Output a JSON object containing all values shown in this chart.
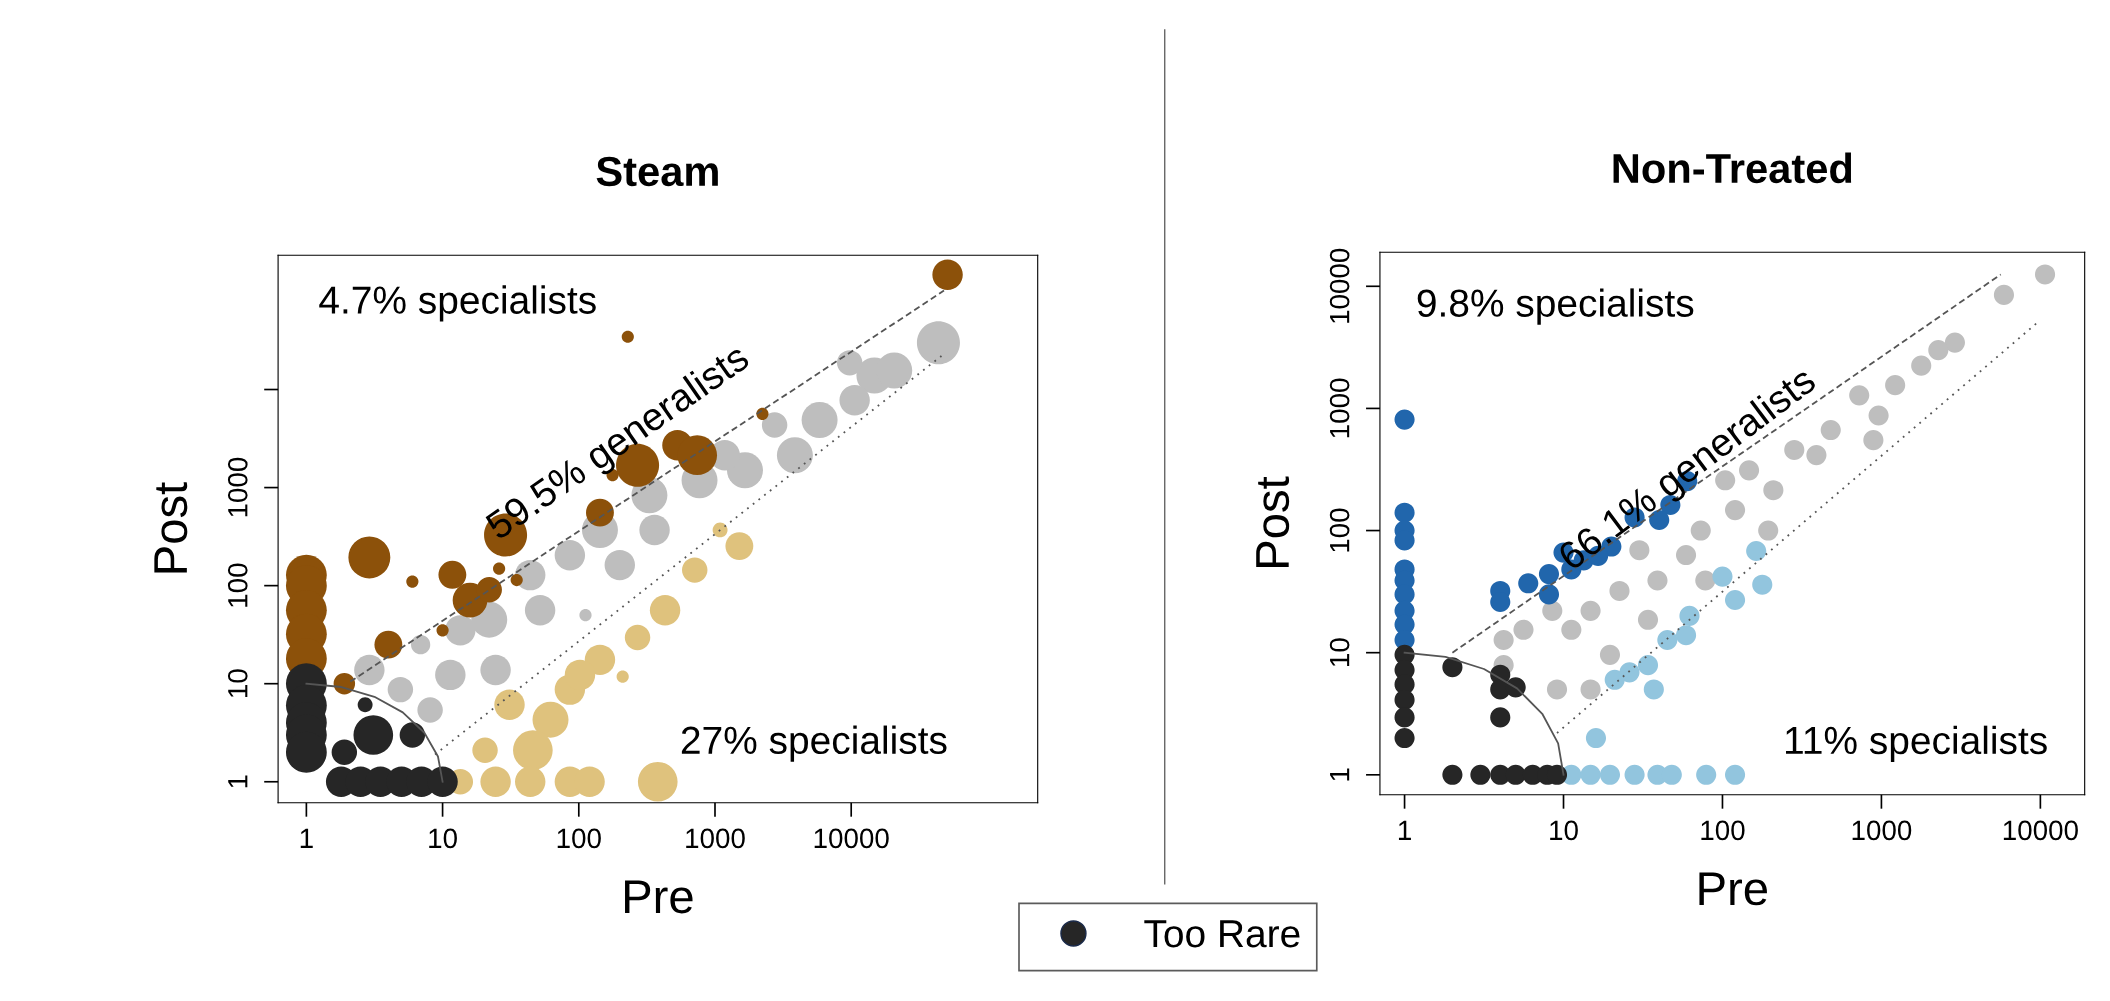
{
  "chart_data": [
    {
      "type": "bubble",
      "title": "Steam",
      "xlabel": "Pre",
      "ylabel": "Post",
      "log": "xy",
      "grid": false,
      "marker": "circle",
      "legend": "bottom",
      "xlim": [
        0.62,
        234000
      ],
      "ylim": [
        0.61,
        234000
      ],
      "xticks": [
        1,
        10,
        100,
        1000,
        10000
      ],
      "yticks": [
        1,
        10,
        100,
        1000,
        {
          "value": 10000,
          "label": null
        }
      ],
      "annotations": [
        "4.7% specialists",
        "59.5% generalists",
        "27% specialists"
      ],
      "series": [
        {
          "color": "#bebebe",
          "x": [
            43700,
            14800,
            9750,
            10600,
            5860,
            2740,
            3860,
            1660,
            1180,
            770,
            330,
            360,
            143,
            200,
            86,
            44,
            52,
            112,
            22,
            13.5,
            24.5,
            11.4,
            6.9,
            2.9,
            8.1,
            4.9,
            20700
          ],
          "values": [
            30000,
            13900,
            18700,
            7770,
            4880,
            4350,
            2140,
            1500,
            2140,
            1190,
            835,
            370,
            370,
            162,
            204,
            128,
            56,
            50,
            45,
            35,
            13.8,
            12.3,
            25,
            13.8,
            5.4,
            8.7,
            15600
          ],
          "sizes": [
            1,
            0.7,
            0.35,
            0.5,
            0.7,
            0.35,
            0.7,
            0.7,
            0.5,
            0.7,
            0.7,
            0.5,
            0.7,
            0.5,
            0.5,
            0.5,
            0.5,
            0.08,
            0.7,
            0.5,
            0.5,
            0.5,
            0.2,
            0.5,
            0.35,
            0.35,
            0.7
          ]
        },
        {
          "color": "#dfc27d",
          "x": [
            1510,
            1090,
            710,
            430,
            270,
            210,
            143,
            86,
            62,
            31,
            46,
            20.5,
            380,
            13.5,
            24.5,
            44,
            86,
            120,
            102
          ],
          "values": [
            253,
            370,
            144,
            56,
            29.6,
            11.8,
            17.5,
            8.7,
            4.3,
            6.1,
            2.1,
            2.1,
            1,
            1,
            1,
            1,
            1,
            1,
            12.3
          ],
          "sizes": [
            0.42,
            0.12,
            0.35,
            0.5,
            0.35,
            0.08,
            0.5,
            0.5,
            0.7,
            0.5,
            0.85,
            0.35,
            0.85,
            0.35,
            0.5,
            0.5,
            0.5,
            0.5,
            0.5
          ]
        },
        {
          "color": "#8c510a",
          "x": [
            51000,
            229,
            2230,
            270,
            530,
            740,
            177,
            143,
            29,
            2.9,
            6,
            11.8,
            26,
            35,
            15.9,
            22,
            10,
            4,
            1.9,
            1,
            1,
            1,
            1,
            1
          ],
          "values": [
            148000,
            34500,
            5650,
            1690,
            2700,
            2140,
            1340,
            555,
            328,
            194,
            110,
            129,
            149,
            114,
            71,
            91,
            35,
            25,
            10,
            128,
            100,
            56,
            32,
            18
          ],
          "sizes": [
            0.5,
            0.08,
            0.08,
            1,
            0.5,
            0.85,
            0.08,
            0.42,
            1,
            0.95,
            0.08,
            0.42,
            0.08,
            0.08,
            0.65,
            0.35,
            0.08,
            0.42,
            0.25,
            0.9,
            0.9,
            0.9,
            0.9,
            0.9
          ]
        },
        {
          "name": "Too Rare",
          "color": "#262626",
          "x": [
            1,
            1,
            1,
            1,
            1,
            3.1,
            6,
            2.7,
            1.9,
            1.8,
            2.5,
            3.5,
            5,
            7,
            10
          ],
          "values": [
            10,
            6,
            4,
            3,
            2,
            3,
            3,
            6.1,
            2,
            1,
            1,
            1,
            1,
            1,
            1
          ],
          "sizes": [
            0.9,
            0.9,
            0.9,
            0.9,
            0.9,
            0.85,
            0.35,
            0.12,
            0.35,
            0.5,
            0.5,
            0.5,
            0.5,
            0.5,
            0.5
          ]
        },
        {
          "type": "line",
          "color": "#555555",
          "line_style": "dashed",
          "marker": "none",
          "x": [
            2.1,
            48000
          ],
          "values": [
            10.5,
            102000
          ]
        },
        {
          "type": "line",
          "color": "#555555",
          "line_style": "dotted",
          "marker": "none",
          "x": [
            8.8,
            46000
          ],
          "values": [
            1.9,
            22000
          ]
        },
        {
          "type": "line",
          "color": "#555555",
          "line_style": "solid",
          "marker": "none",
          "x": [
            1,
            1.81,
            3.16,
            5.1,
            7.35,
            9.25,
            10
          ],
          "values": [
            10,
            9.25,
            7.35,
            5.1,
            3.16,
            1.81,
            1
          ]
        }
      ]
    },
    {
      "type": "scatter",
      "title": "Non-Treated",
      "xlabel": "Pre",
      "ylabel": "Post",
      "log": "xy",
      "grid": false,
      "marker": "circle",
      "xlim": [
        0.7,
        19000
      ],
      "ylim": [
        0.686,
        19000
      ],
      "xticks": [
        1,
        10,
        100,
        1000,
        10000
      ],
      "yticks": [
        1,
        10,
        100,
        1000,
        10000
      ],
      "annotations": [
        "9.8% specialists",
        "66.1% generalists",
        "11% specialists"
      ],
      "series": [
        {
          "color": "#bebebe",
          "x": [
            10700,
            5900,
            2900,
            2280,
            1780,
            1220,
            960,
            725,
            890,
            480,
            390,
            283,
            209,
            147,
            104,
            194,
            120,
            73,
            59,
            78,
            39,
            30,
            22.5,
            14.8,
            11.2,
            8.5,
            5.6,
            4.2,
            4.2,
            9.1,
            14.8,
            19.6,
            34
          ],
          "values": [
            12500,
            8500,
            3460,
            3000,
            2240,
            1550,
            875,
            1280,
            550,
            665,
            415,
            457,
            214,
            311,
            258,
            100,
            147,
            100,
            63,
            39,
            39,
            69,
            32,
            22,
            15.4,
            22,
            15.4,
            12.7,
            7.9,
            5,
            5,
            9.6,
            18.6
          ]
        },
        {
          "color": "#92c5de",
          "x": [
            163,
            178,
            100,
            120,
            62,
            59,
            45,
            34,
            26,
            21,
            37,
            16,
            11.2,
            14.8,
            19.6,
            28,
            39,
            48,
            79,
            120
          ],
          "values": [
            68,
            36,
            42,
            27,
            20,
            13.9,
            12.7,
            7.9,
            6.9,
            6,
            5,
            2,
            1,
            1,
            1,
            1,
            1,
            1,
            1,
            1
          ]
        },
        {
          "color": "#2166ac",
          "x": [
            1,
            1,
            1,
            1,
            1,
            1,
            1,
            1,
            1,
            1,
            60,
            47,
            28,
            40,
            20,
            10,
            13.4,
            16.5,
            8.1,
            6,
            4,
            4,
            8.1,
            11.2
          ],
          "values": [
            810,
            140,
            100,
            83,
            48,
            39,
            30,
            22,
            17,
            12.7,
            254,
            162,
            128,
            122,
            74,
            66,
            57,
            62,
            44,
            37,
            32,
            26,
            30,
            48
          ]
        },
        {
          "color": "#262626",
          "x": [
            1,
            1,
            1,
            1,
            1,
            1,
            2,
            4,
            4,
            5,
            4,
            2,
            3,
            4,
            5,
            6.4,
            7.9,
            9.1
          ],
          "values": [
            9.6,
            7.2,
            5.5,
            4.1,
            2.95,
            2,
            7.6,
            6.6,
            5,
            5.2,
            2.95,
            1,
            1,
            1,
            1,
            1,
            1,
            1
          ]
        },
        {
          "type": "line",
          "color": "#555555",
          "line_style": "dashed",
          "marker": "none",
          "x": [
            2,
            5630
          ],
          "values": [
            10,
            12500
          ]
        },
        {
          "type": "line",
          "color": "#555555",
          "line_style": "dotted",
          "marker": "none",
          "x": [
            9.1,
            9500
          ],
          "values": [
            2.2,
            5000
          ]
        },
        {
          "type": "line",
          "color": "#555555",
          "line_style": "solid",
          "marker": "none",
          "x": [
            1,
            1.81,
            3.16,
            5.1,
            7.35,
            9.25,
            10
          ],
          "values": [
            10,
            9.25,
            7.35,
            5.1,
            3.16,
            1.81,
            1
          ]
        }
      ]
    }
  ]
}
